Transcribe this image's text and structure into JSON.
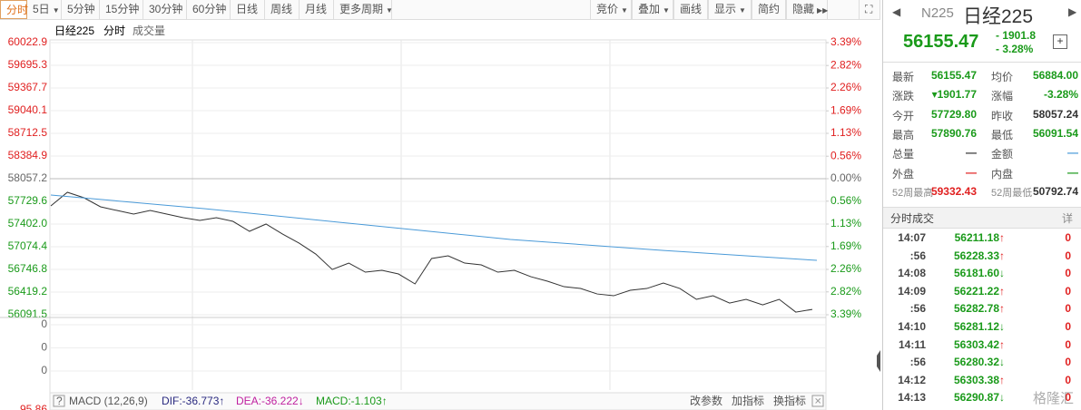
{
  "toolbar": {
    "left": [
      "分时",
      "5日",
      "5分钟",
      "15分钟",
      "30分钟",
      "60分钟",
      "日线",
      "周线",
      "月线",
      "更多周期"
    ],
    "left_dropdown": [
      false,
      true,
      false,
      false,
      false,
      false,
      false,
      false,
      false,
      true
    ],
    "right": [
      "竞价",
      "叠加",
      "画线",
      "显示",
      "简约",
      "隐藏"
    ],
    "right_dropdown": [
      true,
      true,
      false,
      true,
      false,
      false
    ]
  },
  "chart_data": {
    "type": "line",
    "title": "日经225",
    "subtitle": "分时",
    "indicator": "成交量",
    "ylim": [
      56091.5,
      60022.9
    ],
    "yticks": [
      60022.9,
      59695.3,
      59367.7,
      59040.1,
      58712.5,
      58384.9,
      58057.2,
      57729.6,
      57402.0,
      57074.4,
      56746.8,
      56419.2,
      56091.5
    ],
    "ytick_labels": [
      "60022.9",
      "59695.3",
      "59367.7",
      "59040.1",
      "58712.5",
      "58384.9",
      "58057.2",
      "57729.6",
      "57402.0",
      "57074.4",
      "56746.8",
      "56419.2",
      "56091.5"
    ],
    "y2lim": [
      -3.39,
      3.39
    ],
    "y2ticks": [
      {
        "value": 3.39,
        "label": "3.39%"
      },
      {
        "value": 2.82,
        "label": "2.82%"
      },
      {
        "value": 2.26,
        "label": "2.26%"
      },
      {
        "value": 1.69,
        "label": "1.69%"
      },
      {
        "value": 1.13,
        "label": "1.13%"
      },
      {
        "value": 0.56,
        "label": "0.56%"
      },
      {
        "value": 0,
        "label": "0.00%"
      },
      {
        "value": -0.56,
        "label": "0.56%"
      },
      {
        "value": -1.13,
        "label": "1.13%"
      },
      {
        "value": -1.69,
        "label": "1.69%"
      },
      {
        "value": -2.26,
        "label": "2.26%"
      },
      {
        "value": -2.82,
        "label": "2.82%"
      },
      {
        "value": -3.39,
        "label": "3.39%"
      }
    ],
    "grid": true,
    "series": [
      {
        "color": "#333333",
        "values": [
          57664,
          57861,
          57782,
          57651,
          57598,
          57546,
          57598,
          57546,
          57494,
          57454,
          57494,
          57441,
          57297,
          57402,
          57257,
          57126,
          56969,
          56746,
          56838,
          56707,
          56733,
          56681,
          56537,
          56904,
          56943,
          56838,
          56812,
          56707,
          56733,
          56641,
          56576,
          56497,
          56471,
          56392,
          56366,
          56445,
          56471,
          56550,
          56471,
          56314,
          56366,
          56261,
          56314,
          56235,
          56314,
          56130,
          56169
        ]
      },
      {
        "color": "#4a9ad8",
        "values": [
          57821,
          57625,
          57402,
          57179,
          57021,
          56877
        ]
      }
    ]
  },
  "volume_panel": {
    "ticks": [
      "0",
      "0",
      "0"
    ],
    "cut_label": "95.86"
  },
  "macd": {
    "help": "?",
    "name": "MACD (12,26,9)",
    "dif": "DIF:-36.773↑",
    "dea": "DEA:-36.222↓",
    "macd": "MACD:-1.103↑",
    "actions": [
      "改参数",
      "加指标",
      "换指标"
    ]
  },
  "quote": {
    "code": "N225",
    "name": "日经225",
    "price": "56155.47",
    "change": "- 1901.8",
    "pct": "- 3.28%",
    "rows": [
      [
        "最新",
        "56155.47",
        "均价",
        "56884.00"
      ],
      [
        "涨跌",
        "▾1901.77",
        "涨幅",
        "-3.28%"
      ],
      [
        "今开",
        "57729.80",
        "昨收",
        "58057.24"
      ],
      [
        "最高",
        "57890.76",
        "最低",
        "56091.54"
      ],
      [
        "总量",
        "—",
        "金额",
        "—"
      ],
      [
        "外盘",
        "—",
        "内盘",
        "—"
      ],
      [
        "52周最高",
        "59332.43",
        "52周最低",
        "50792.74"
      ]
    ],
    "colors": [
      [
        "#1a9a1a",
        "#1a9a1a"
      ],
      [
        "#1a9a1a",
        "#1a9a1a"
      ],
      [
        "#1a9a1a",
        "#333333"
      ],
      [
        "#1a9a1a",
        "#1a9a1a"
      ],
      [
        "#333333",
        "#4a9ad8"
      ],
      [
        "#e02020",
        "#1a9a1a"
      ],
      [
        "#e02020",
        "#333333"
      ]
    ]
  },
  "trades": {
    "title": "分时成交",
    "detail": "详",
    "rows": [
      {
        "time": "14:07",
        "price": "56211.18",
        "dir": "up",
        "vol": "0"
      },
      {
        "time": ":56",
        "price": "56228.33",
        "dir": "up",
        "vol": "0"
      },
      {
        "time": "14:08",
        "price": "56181.60",
        "dir": "down",
        "vol": "0"
      },
      {
        "time": "14:09",
        "price": "56221.22",
        "dir": "up",
        "vol": "0"
      },
      {
        "time": ":56",
        "price": "56282.78",
        "dir": "up",
        "vol": "0"
      },
      {
        "time": "14:10",
        "price": "56281.12",
        "dir": "down",
        "vol": "0"
      },
      {
        "time": "14:11",
        "price": "56303.42",
        "dir": "up",
        "vol": "0"
      },
      {
        "time": ":56",
        "price": "56280.32",
        "dir": "down",
        "vol": "0"
      },
      {
        "time": "14:12",
        "price": "56303.38",
        "dir": "up",
        "vol": "0"
      },
      {
        "time": "14:13",
        "price": "56290.87",
        "dir": "down",
        "vol": "0"
      }
    ]
  },
  "watermark": "格隆汇"
}
